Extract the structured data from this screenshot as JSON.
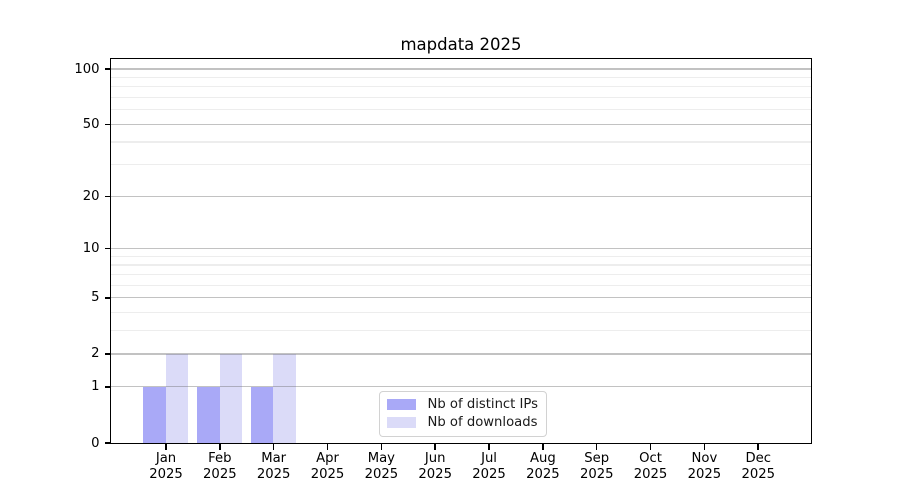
{
  "chart_data": {
    "type": "bar",
    "title": "mapdata 2025",
    "categories": [
      "Jan",
      "Feb",
      "Mar",
      "Apr",
      "May",
      "Jun",
      "Jul",
      "Aug",
      "Sep",
      "Oct",
      "Nov",
      "Dec"
    ],
    "x_tick_year": "2025",
    "series": [
      {
        "name": "Nb of distinct IPs",
        "color": "#a9a9f7",
        "values": [
          1,
          1,
          1,
          0,
          0,
          0,
          0,
          0,
          0,
          0,
          0,
          0
        ]
      },
      {
        "name": "Nb of downloads",
        "color": "#dbdbf8",
        "values": [
          2,
          2,
          2,
          0,
          0,
          0,
          0,
          0,
          0,
          0,
          0,
          0
        ]
      }
    ],
    "yaxis": {
      "scale": "log1p",
      "ylim": [
        0,
        100
      ],
      "major_ticks": [
        0,
        1,
        2,
        5,
        10,
        20,
        50,
        100
      ],
      "minor_ticks": [
        3,
        4,
        6,
        7,
        8,
        9,
        30,
        40,
        60,
        70,
        80,
        90
      ],
      "grid": true
    },
    "legend": {
      "entries": [
        "Nb of distinct IPs",
        "Nb of downloads"
      ],
      "position": "lower center"
    }
  },
  "colors": {
    "background": "#ffffff",
    "spine": "#000000",
    "grid_minor": "#ededed",
    "grid_major": "#c9c9c9",
    "legend_border": "#d2d2d2",
    "text": "#000000"
  }
}
